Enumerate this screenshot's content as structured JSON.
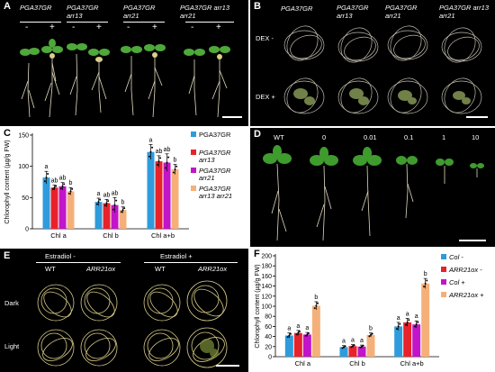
{
  "panel_a": {
    "label": "A",
    "genotypes": [
      "PGA37GR",
      "PGA37GR arr13",
      "PGA37GR arr21",
      "PGA37GR arr13 arr21"
    ],
    "treatments": [
      "-",
      "+"
    ]
  },
  "panel_b": {
    "label": "B",
    "genotypes": [
      "PGA37GR",
      "PGA37GR arr13",
      "PGA37GR arr21",
      "PGA37GR arr13 arr21"
    ],
    "rows": [
      "DEX -",
      "DEX +"
    ]
  },
  "panel_d": {
    "label": "D",
    "doses": [
      "WT",
      "0",
      "0.01",
      "0.1",
      "1",
      "10"
    ]
  },
  "panel_e": {
    "label": "E",
    "groups": [
      "Estradiol -",
      "Estradiol +"
    ],
    "genotypes": [
      "WT",
      "ARR21ox",
      "WT",
      "ARR21ox"
    ],
    "rows": [
      "Dark",
      "Light"
    ]
  },
  "chart_data": [
    {
      "panel": "C",
      "type": "bar",
      "ylabel": "Chlorophyll content (µg/g FW)",
      "ylim": [
        0,
        150
      ],
      "yticks": [
        0,
        50,
        100,
        150
      ],
      "categories": [
        "Chl a",
        "Chl b",
        "Chl a+b"
      ],
      "series": [
        {
          "name": "PGA37GR",
          "color": "#2e9bdc",
          "values": [
            82,
            43,
            123
          ],
          "errors": [
            10,
            6,
            12
          ],
          "letters": [
            "a",
            "a",
            "a"
          ]
        },
        {
          "name": "PGA37GR arr13",
          "color": "#e8222a",
          "values": [
            66,
            41,
            108
          ],
          "errors": [
            4,
            6,
            9
          ],
          "letters": [
            "ab",
            "ab",
            "ab"
          ]
        },
        {
          "name": "PGA37GR arr21",
          "color": "#c214c8",
          "values": [
            68,
            38,
            106
          ],
          "errors": [
            6,
            12,
            14
          ],
          "letters": [
            "ab",
            "ab",
            "ab"
          ]
        },
        {
          "name": "PGA37GR arr13 arr21",
          "color": "#f5b07a",
          "values": [
            60,
            30,
            95
          ],
          "errors": [
            6,
            5,
            8
          ],
          "letters": [
            "b",
            "b",
            "b"
          ]
        }
      ]
    },
    {
      "panel": "F",
      "type": "bar",
      "ylabel": "Chlorophyll content (µg/g FW)",
      "ylim": [
        0,
        200
      ],
      "yticks": [
        0,
        20,
        40,
        60,
        80,
        100,
        120,
        140,
        160,
        180,
        200
      ],
      "categories": [
        "Chl a",
        "Chl b",
        "Chl a+b"
      ],
      "series": [
        {
          "name": "Col -",
          "color": "#2e9bdc",
          "values": [
            42,
            19,
            60
          ],
          "errors": [
            5,
            3,
            8
          ],
          "letters": [
            "a",
            "a",
            "a"
          ]
        },
        {
          "name": "ARR21ox -",
          "color": "#e8222a",
          "values": [
            47,
            21,
            68
          ],
          "errors": [
            5,
            3,
            8
          ],
          "letters": [
            "a",
            "a",
            "a"
          ]
        },
        {
          "name": "Col +",
          "color": "#c214c8",
          "values": [
            44,
            20,
            64
          ],
          "errors": [
            4,
            3,
            7
          ],
          "letters": [
            "a",
            "a",
            "a"
          ]
        },
        {
          "name": "ARR21ox +",
          "color": "#f5b07a",
          "values": [
            101,
            43,
            145
          ],
          "errors": [
            8,
            4,
            10
          ],
          "letters": [
            "b",
            "b",
            "b"
          ]
        }
      ]
    }
  ]
}
